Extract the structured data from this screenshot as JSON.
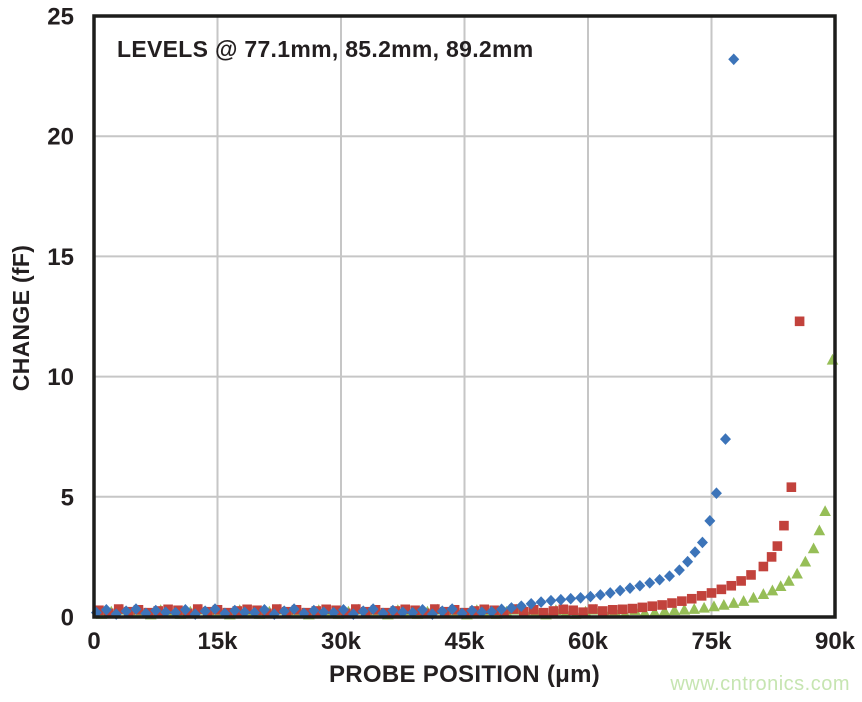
{
  "watermark": {
    "text": "www.cntronics.com",
    "color": "#c6e5b1"
  },
  "chart_data": {
    "type": "scatter",
    "annotation": "LEVELS @ 77.1mm, 85.2mm, 89.2mm",
    "xlabel": "PROBE POSITION (μm)",
    "ylabel": "CHANGE (fF)",
    "xlim": [
      0,
      90000
    ],
    "ylim": [
      0,
      25
    ],
    "grid": true,
    "legend_position": "none",
    "grid_color": "#c6c6c6",
    "frame_color": "#1d1d1b",
    "text_color": "#231f20",
    "x_ticks": [
      {
        "value": 0,
        "label": "0"
      },
      {
        "value": 15000,
        "label": "15k"
      },
      {
        "value": 30000,
        "label": "30k"
      },
      {
        "value": 45000,
        "label": "45k"
      },
      {
        "value": 60000,
        "label": "60k"
      },
      {
        "value": 75000,
        "label": "75k"
      },
      {
        "value": 90000,
        "label": "90k"
      }
    ],
    "y_ticks": [
      {
        "value": 0,
        "label": "0"
      },
      {
        "value": 5,
        "label": "5"
      },
      {
        "value": 10,
        "label": "10"
      },
      {
        "value": 15,
        "label": "15"
      },
      {
        "value": 20,
        "label": "20"
      },
      {
        "value": 25,
        "label": "25"
      }
    ],
    "series": [
      {
        "name": "Level @ 77.1mm",
        "marker": "diamond",
        "color": "#3c74b9",
        "points": [
          [
            300,
            0.18
          ],
          [
            1500,
            0.3
          ],
          [
            2700,
            0.12
          ],
          [
            3900,
            0.24
          ],
          [
            5100,
            0.33
          ],
          [
            6300,
            0.15
          ],
          [
            7500,
            0.27
          ],
          [
            8700,
            0.2
          ],
          [
            9900,
            0.18
          ],
          [
            11100,
            0.3
          ],
          [
            12300,
            0.12
          ],
          [
            13500,
            0.24
          ],
          [
            14700,
            0.33
          ],
          [
            15900,
            0.15
          ],
          [
            17100,
            0.27
          ],
          [
            18300,
            0.2
          ],
          [
            19500,
            0.18
          ],
          [
            20700,
            0.3
          ],
          [
            21900,
            0.12
          ],
          [
            23100,
            0.24
          ],
          [
            24300,
            0.33
          ],
          [
            25500,
            0.15
          ],
          [
            26700,
            0.27
          ],
          [
            27900,
            0.2
          ],
          [
            29100,
            0.18
          ],
          [
            30300,
            0.3
          ],
          [
            31500,
            0.12
          ],
          [
            32700,
            0.24
          ],
          [
            33900,
            0.33
          ],
          [
            35100,
            0.15
          ],
          [
            36300,
            0.27
          ],
          [
            37500,
            0.2
          ],
          [
            38700,
            0.18
          ],
          [
            39900,
            0.3
          ],
          [
            41100,
            0.12
          ],
          [
            42300,
            0.24
          ],
          [
            43500,
            0.33
          ],
          [
            44700,
            0.15
          ],
          [
            45900,
            0.27
          ],
          [
            47100,
            0.2
          ],
          [
            48300,
            0.22
          ],
          [
            49500,
            0.32
          ],
          [
            50700,
            0.38
          ],
          [
            51900,
            0.45
          ],
          [
            53100,
            0.55
          ],
          [
            54300,
            0.62
          ],
          [
            55500,
            0.68
          ],
          [
            56700,
            0.72
          ],
          [
            57900,
            0.76
          ],
          [
            59100,
            0.8
          ],
          [
            60300,
            0.85
          ],
          [
            61500,
            0.92
          ],
          [
            62700,
            1.0
          ],
          [
            63900,
            1.1
          ],
          [
            65100,
            1.2
          ],
          [
            66300,
            1.3
          ],
          [
            67500,
            1.42
          ],
          [
            68700,
            1.55
          ],
          [
            69900,
            1.7
          ],
          [
            71100,
            1.95
          ],
          [
            72100,
            2.3
          ],
          [
            73000,
            2.7
          ],
          [
            73900,
            3.1
          ],
          [
            74800,
            4.0
          ],
          [
            75600,
            5.15
          ],
          [
            76700,
            7.4
          ],
          [
            77700,
            23.2
          ]
        ]
      },
      {
        "name": "Level @ 85.2mm",
        "marker": "square",
        "color": "#c2423c",
        "points": [
          [
            600,
            0.28
          ],
          [
            1800,
            0.15
          ],
          [
            3000,
            0.33
          ],
          [
            4200,
            0.22
          ],
          [
            5400,
            0.3
          ],
          [
            6600,
            0.18
          ],
          [
            7800,
            0.25
          ],
          [
            9000,
            0.32
          ],
          [
            10200,
            0.28
          ],
          [
            11400,
            0.15
          ],
          [
            12600,
            0.33
          ],
          [
            13800,
            0.22
          ],
          [
            15000,
            0.3
          ],
          [
            16200,
            0.18
          ],
          [
            17400,
            0.25
          ],
          [
            18600,
            0.32
          ],
          [
            19800,
            0.28
          ],
          [
            21000,
            0.15
          ],
          [
            22200,
            0.33
          ],
          [
            23400,
            0.22
          ],
          [
            24600,
            0.3
          ],
          [
            25800,
            0.18
          ],
          [
            27000,
            0.25
          ],
          [
            28200,
            0.32
          ],
          [
            29400,
            0.28
          ],
          [
            30600,
            0.15
          ],
          [
            31800,
            0.33
          ],
          [
            33000,
            0.22
          ],
          [
            34200,
            0.3
          ],
          [
            35400,
            0.18
          ],
          [
            36600,
            0.25
          ],
          [
            37800,
            0.32
          ],
          [
            39000,
            0.28
          ],
          [
            40200,
            0.15
          ],
          [
            41400,
            0.33
          ],
          [
            42600,
            0.22
          ],
          [
            43800,
            0.3
          ],
          [
            45000,
            0.18
          ],
          [
            46200,
            0.25
          ],
          [
            47400,
            0.32
          ],
          [
            48600,
            0.28
          ],
          [
            49800,
            0.15
          ],
          [
            51000,
            0.33
          ],
          [
            52200,
            0.22
          ],
          [
            53400,
            0.3
          ],
          [
            54600,
            0.18
          ],
          [
            55800,
            0.25
          ],
          [
            57000,
            0.32
          ],
          [
            58200,
            0.28
          ],
          [
            59400,
            0.2
          ],
          [
            60600,
            0.33
          ],
          [
            61800,
            0.25
          ],
          [
            63000,
            0.3
          ],
          [
            64200,
            0.32
          ],
          [
            65400,
            0.35
          ],
          [
            66600,
            0.4
          ],
          [
            67800,
            0.45
          ],
          [
            69000,
            0.5
          ],
          [
            70200,
            0.58
          ],
          [
            71400,
            0.66
          ],
          [
            72600,
            0.76
          ],
          [
            73800,
            0.88
          ],
          [
            75000,
            1.0
          ],
          [
            76200,
            1.15
          ],
          [
            77400,
            1.3
          ],
          [
            78600,
            1.5
          ],
          [
            79800,
            1.75
          ],
          [
            81300,
            2.1
          ],
          [
            82300,
            2.5
          ],
          [
            83000,
            2.95
          ],
          [
            83800,
            3.8
          ],
          [
            84700,
            5.4
          ],
          [
            85700,
            12.3
          ]
        ]
      },
      {
        "name": "Level @ 89.2mm",
        "marker": "triangle",
        "color": "#96be57",
        "points": [
          [
            900,
            0.12
          ],
          [
            2100,
            0.22
          ],
          [
            3300,
            0.3
          ],
          [
            4500,
            0.16
          ],
          [
            5700,
            0.25
          ],
          [
            6900,
            0.1
          ],
          [
            8100,
            0.28
          ],
          [
            9300,
            0.18
          ],
          [
            10500,
            0.12
          ],
          [
            11700,
            0.22
          ],
          [
            12900,
            0.3
          ],
          [
            14100,
            0.16
          ],
          [
            15300,
            0.25
          ],
          [
            16500,
            0.1
          ],
          [
            17700,
            0.28
          ],
          [
            18900,
            0.18
          ],
          [
            20100,
            0.12
          ],
          [
            21300,
            0.22
          ],
          [
            22500,
            0.3
          ],
          [
            23700,
            0.16
          ],
          [
            24900,
            0.25
          ],
          [
            26100,
            0.1
          ],
          [
            27300,
            0.28
          ],
          [
            28500,
            0.18
          ],
          [
            29700,
            0.12
          ],
          [
            30900,
            0.22
          ],
          [
            32100,
            0.3
          ],
          [
            33300,
            0.16
          ],
          [
            34500,
            0.25
          ],
          [
            35700,
            0.1
          ],
          [
            36900,
            0.28
          ],
          [
            38100,
            0.18
          ],
          [
            39300,
            0.12
          ],
          [
            40500,
            0.22
          ],
          [
            41700,
            0.3
          ],
          [
            42900,
            0.16
          ],
          [
            44100,
            0.25
          ],
          [
            45300,
            0.1
          ],
          [
            46500,
            0.28
          ],
          [
            47700,
            0.18
          ],
          [
            48900,
            0.12
          ],
          [
            50100,
            0.22
          ],
          [
            51300,
            0.3
          ],
          [
            52500,
            0.16
          ],
          [
            53700,
            0.25
          ],
          [
            54900,
            0.1
          ],
          [
            56100,
            0.28
          ],
          [
            57300,
            0.18
          ],
          [
            58500,
            0.12
          ],
          [
            59700,
            0.22
          ],
          [
            60900,
            0.3
          ],
          [
            62100,
            0.16
          ],
          [
            63300,
            0.25
          ],
          [
            64500,
            0.14
          ],
          [
            65700,
            0.28
          ],
          [
            66900,
            0.18
          ],
          [
            68100,
            0.2
          ],
          [
            69300,
            0.25
          ],
          [
            70500,
            0.28
          ],
          [
            71700,
            0.3
          ],
          [
            72900,
            0.33
          ],
          [
            74100,
            0.38
          ],
          [
            75300,
            0.44
          ],
          [
            76500,
            0.5
          ],
          [
            77700,
            0.58
          ],
          [
            78900,
            0.66
          ],
          [
            80100,
            0.8
          ],
          [
            81300,
            0.95
          ],
          [
            82400,
            1.1
          ],
          [
            83400,
            1.28
          ],
          [
            84400,
            1.5
          ],
          [
            85400,
            1.8
          ],
          [
            86400,
            2.3
          ],
          [
            87400,
            2.85
          ],
          [
            88100,
            3.6
          ],
          [
            88800,
            4.4
          ],
          [
            89700,
            10.7
          ]
        ]
      }
    ]
  }
}
